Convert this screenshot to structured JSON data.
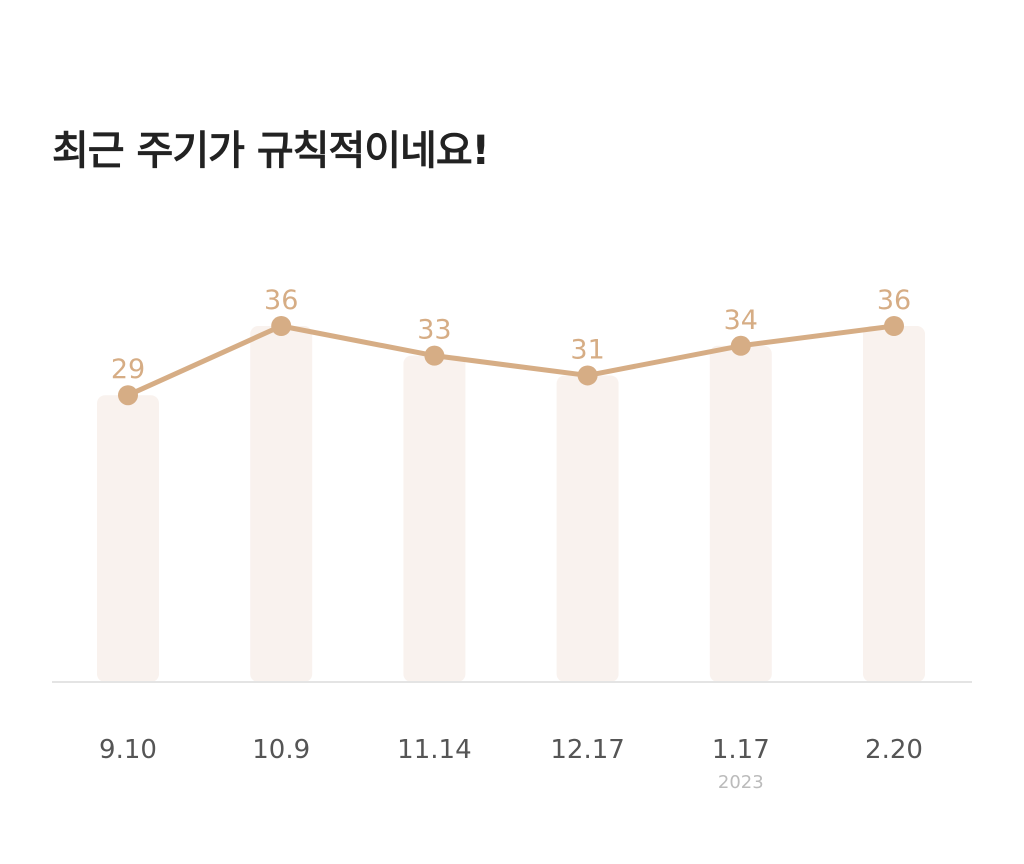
{
  "heading": "최근 주기가 규칙적이네요!",
  "chart_data": {
    "type": "bar",
    "categories": [
      "9.10",
      "10.9",
      "11.14",
      "12.17",
      "1.17",
      "2.20"
    ],
    "category_sublabels": [
      "",
      "",
      "",
      "",
      "2023",
      ""
    ],
    "values": [
      29,
      36,
      33,
      31,
      34,
      36
    ],
    "data_labels": [
      "29",
      "36",
      "33",
      "31",
      "34",
      "36"
    ],
    "overlay": "line",
    "ylim": [
      0,
      36
    ],
    "grid": false,
    "legend": "none",
    "title": "",
    "xlabel": "",
    "ylabel": ""
  },
  "colors": {
    "accent": "#d6ad85",
    "bar_fill": "#f9f2ee",
    "baseline": "#e4e4e4",
    "label_text": "#555555",
    "sublabel_text": "#bbbbbb",
    "title_text": "#222222"
  }
}
